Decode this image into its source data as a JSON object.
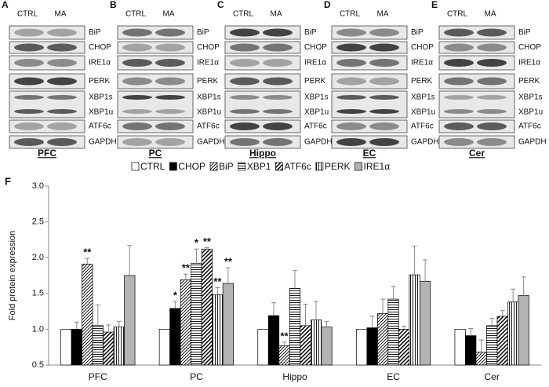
{
  "blots": {
    "lanes": [
      "CTRL",
      "MA"
    ],
    "proteins": [
      "BiP",
      "CHOP",
      "IRE1α",
      "PERK",
      "XBP1s",
      "XBP1u",
      "ATF6c",
      "GAPDH"
    ],
    "panels": [
      {
        "letter": "A",
        "name": "PFC"
      },
      {
        "letter": "B",
        "name": "PC"
      },
      {
        "letter": "C",
        "name": "Hippo"
      },
      {
        "letter": "D",
        "name": "EC"
      },
      {
        "letter": "E",
        "name": "Cer"
      }
    ]
  },
  "chart_data": {
    "type": "bar",
    "panel_letter": "F",
    "ylabel": "Fold protein expression",
    "categories": [
      "PFC",
      "PC",
      "Hippo",
      "EC",
      "Cer"
    ],
    "ylim": [
      0.5,
      3.0
    ],
    "yticks": [
      {
        "value": 0.5,
        "label": "0.5"
      },
      {
        "value": 1,
        "label": "1.0"
      },
      {
        "value": 1.5,
        "label": "1.5"
      },
      {
        "value": 2,
        "label": "2.0"
      },
      {
        "value": 2.5,
        "label": "2.5"
      },
      {
        "value": 3,
        "label": "3.0"
      }
    ],
    "legend": "top",
    "series": [
      {
        "name": "CTRL",
        "color": "#ffffff",
        "pattern": "solid",
        "values": [
          1.0,
          1.0,
          1.0,
          1.0,
          1.0
        ]
      },
      {
        "name": "CHOP",
        "color": "#000000",
        "pattern": "solid",
        "values": [
          1.0,
          1.29,
          1.19,
          1.02,
          0.91
        ],
        "errors": [
          0.1,
          0.1,
          0.18,
          0.16,
          0.1
        ],
        "significance": [
          null,
          "*",
          null,
          null,
          null
        ]
      },
      {
        "name": "BiP",
        "color": "#ffffff",
        "pattern": "diag",
        "values": [
          1.91,
          1.69,
          0.77,
          1.22,
          0.68
        ],
        "errors": [
          0.08,
          0.08,
          0.05,
          0.2,
          0.17
        ],
        "significance": [
          "**",
          "**",
          "**",
          null,
          null
        ]
      },
      {
        "name": "XBP1",
        "color": "#ffffff",
        "pattern": "hlines",
        "values": [
          1.05,
          1.92,
          1.57,
          1.42,
          1.05
        ],
        "errors": [
          0.29,
          0.2,
          0.25,
          0.18,
          0.1
        ],
        "significance": [
          null,
          "*",
          null,
          null,
          null
        ]
      },
      {
        "name": "ATF6c",
        "color": "#ffffff",
        "pattern": "diag2",
        "values": [
          0.96,
          2.12,
          1.05,
          1.0,
          1.18
        ],
        "errors": [
          0.1,
          0.02,
          0.3,
          0.04,
          0.08
        ],
        "significance": [
          null,
          "**",
          null,
          null,
          null
        ]
      },
      {
        "name": "PERK",
        "color": "#ffffff",
        "pattern": "vlines",
        "values": [
          1.03,
          1.48,
          1.13,
          1.76,
          1.38
        ],
        "errors": [
          0.08,
          0.1,
          0.26,
          0.4,
          0.18
        ],
        "significance": [
          null,
          "**",
          null,
          null,
          null
        ]
      },
      {
        "name": "IRE1α",
        "color": "#b3b3b3",
        "pattern": "solid",
        "values": [
          1.75,
          1.64,
          1.03,
          1.67,
          1.47
        ],
        "errors": [
          0.42,
          0.22,
          0.08,
          0.3,
          0.26
        ],
        "significance": [
          null,
          "**",
          null,
          null,
          null
        ]
      }
    ]
  }
}
